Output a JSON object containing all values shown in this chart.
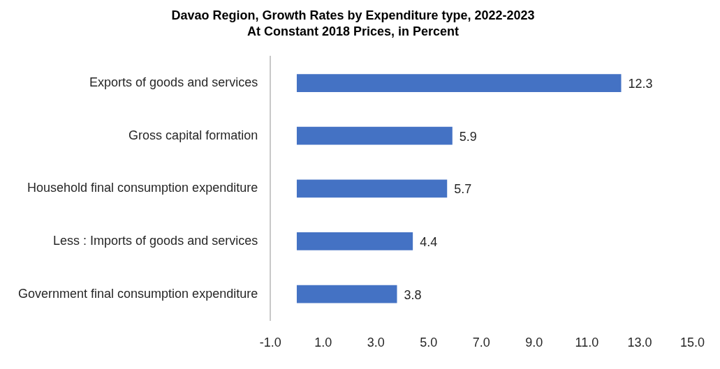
{
  "chart_data": {
    "type": "bar",
    "orientation": "horizontal",
    "title": "Davao Region, Growth Rates by Expenditure type, 2022-2023",
    "subtitle": "At Constant 2018 Prices, in Percent",
    "categories": [
      "Exports of goods and services",
      "Gross capital formation",
      "Household final consumption expenditure",
      "Less : Imports of goods and services",
      "Government final consumption expenditure"
    ],
    "values": [
      12.3,
      5.9,
      5.7,
      4.4,
      3.8
    ],
    "color": "#4472c4",
    "data_labels": true,
    "xlim": [
      -1,
      15
    ],
    "xticks": [
      {
        "value": -1,
        "label": "-1.0"
      },
      {
        "value": 1,
        "label": "1.0"
      },
      {
        "value": 3,
        "label": "3.0"
      },
      {
        "value": 5,
        "label": "5.0"
      },
      {
        "value": 7,
        "label": "7.0"
      },
      {
        "value": 9,
        "label": "9.0"
      },
      {
        "value": 11,
        "label": "11.0"
      },
      {
        "value": 13,
        "label": "13.0"
      },
      {
        "value": 15,
        "label": "15.0"
      }
    ]
  }
}
